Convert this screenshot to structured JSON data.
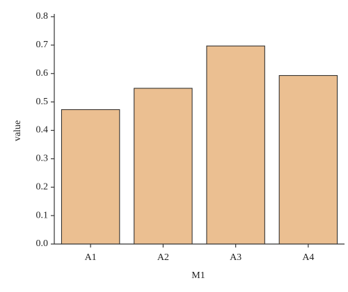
{
  "chart_data": {
    "type": "bar",
    "x_label": "M1",
    "y_label": "value",
    "categories": [
      "A1",
      "A2",
      "A3",
      "A4"
    ],
    "values": [
      0.473,
      0.548,
      0.697,
      0.593
    ],
    "color": "#ebbf91",
    "edge_color": "#222222",
    "ylim": [
      0,
      0.8
    ],
    "yticks": [
      {
        "value": 0,
        "label": "0.0"
      },
      0.1,
      0.2,
      0.3,
      0.4,
      0.5,
      0.6,
      0.7,
      0.8
    ],
    "grid": false
  }
}
